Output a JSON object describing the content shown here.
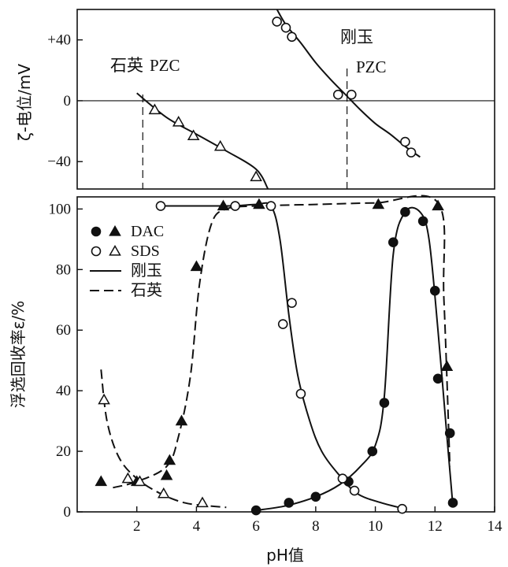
{
  "chart_data": [
    {
      "type": "scatter",
      "ylabel": "ζ-电位/mV",
      "ylim": [
        -58,
        60
      ],
      "xlim": [
        0,
        14
      ],
      "yticks": [
        -40,
        0,
        40
      ],
      "ytick_labels": [
        "−40",
        "0",
        "+40"
      ],
      "annotations": [
        {
          "id": "quartz-pzc",
          "text_cn": "石英",
          "text_en": "PZC",
          "x": 2.2
        },
        {
          "id": "corundum-pzc",
          "text_cn": "刚玉",
          "text_en": "PZC",
          "x": 9.05
        }
      ],
      "series": [
        {
          "marker": "open-triangle",
          "points": [
            [
              2.6,
              -6
            ],
            [
              3.4,
              -14
            ],
            [
              3.9,
              -23
            ],
            [
              4.8,
              -30
            ],
            [
              6.0,
              -50
            ]
          ]
        },
        {
          "marker": "open-circle",
          "points": [
            [
              6.7,
              52
            ],
            [
              7.0,
              48
            ],
            [
              7.2,
              42
            ],
            [
              8.75,
              4
            ],
            [
              9.2,
              4
            ],
            [
              11.0,
              -27
            ],
            [
              11.2,
              -34
            ]
          ]
        }
      ],
      "curves": [
        {
          "style": "solid",
          "points": [
            [
              2.0,
              5
            ],
            [
              3.0,
              -11
            ],
            [
              4.0,
              -22
            ],
            [
              5.0,
              -33
            ],
            [
              6.0,
              -45
            ],
            [
              6.4,
              -58
            ]
          ]
        },
        {
          "style": "solid",
          "points": [
            [
              6.7,
              60
            ],
            [
              7.0,
              50
            ],
            [
              7.5,
              38
            ],
            [
              8.0,
              25
            ],
            [
              8.5,
              14
            ],
            [
              9.0,
              4
            ],
            [
              9.5,
              -6
            ],
            [
              10.0,
              -15
            ],
            [
              10.5,
              -22
            ],
            [
              11.0,
              -30
            ],
            [
              11.5,
              -37
            ]
          ]
        }
      ]
    },
    {
      "type": "scatter",
      "xlabel": "pH值",
      "ylabel": "浮选回收率ε/%",
      "xlim": [
        0,
        14
      ],
      "ylim": [
        0,
        104
      ],
      "xticks": [
        2,
        4,
        6,
        8,
        10,
        12,
        14
      ],
      "yticks": [
        0,
        20,
        40,
        60,
        80,
        100
      ],
      "legend": {
        "placement": "upper-left",
        "entries": [
          {
            "label": "DAC",
            "markers": [
              "filled-circle",
              "filled-triangle"
            ]
          },
          {
            "label": "SDS",
            "markers": [
              "open-circle",
              "open-triangle"
            ]
          },
          {
            "label": "刚玉",
            "line": "solid"
          },
          {
            "label": "石英",
            "line": "dashed"
          }
        ]
      },
      "series": [
        {
          "marker": "filled-circle",
          "points": [
            [
              6.0,
              0.5
            ],
            [
              7.1,
              3
            ],
            [
              8.0,
              5
            ],
            [
              9.1,
              10
            ],
            [
              9.9,
              20
            ],
            [
              10.3,
              36
            ],
            [
              10.6,
              89
            ],
            [
              11.0,
              99
            ],
            [
              11.6,
              96
            ],
            [
              12.0,
              73
            ],
            [
              12.1,
              44
            ],
            [
              12.5,
              26
            ],
            [
              12.6,
              3
            ]
          ]
        },
        {
          "marker": "filled-triangle",
          "points": [
            [
              0.8,
              10
            ],
            [
              2.0,
              10
            ],
            [
              3.0,
              12
            ],
            [
              3.1,
              17
            ],
            [
              3.5,
              30
            ],
            [
              4.0,
              81
            ],
            [
              4.9,
              101
            ],
            [
              6.1,
              101.5
            ],
            [
              10.1,
              101.5
            ],
            [
              12.1,
              101
            ],
            [
              12.4,
              48
            ]
          ]
        },
        {
          "marker": "open-circle",
          "points": [
            [
              2.8,
              101
            ],
            [
              5.3,
              101
            ],
            [
              6.5,
              101
            ],
            [
              6.9,
              62
            ],
            [
              7.2,
              69
            ],
            [
              7.5,
              39
            ],
            [
              8.9,
              11
            ],
            [
              9.3,
              7
            ],
            [
              10.9,
              1
            ]
          ]
        },
        {
          "marker": "open-triangle",
          "points": [
            [
              0.9,
              37
            ],
            [
              1.7,
              11
            ],
            [
              2.1,
              10
            ],
            [
              2.9,
              6
            ],
            [
              4.2,
              3
            ]
          ]
        }
      ],
      "curves": [
        {
          "style": "solid",
          "points": [
            [
              6.0,
              0.5
            ],
            [
              7.0,
              2
            ],
            [
              8.0,
              5
            ],
            [
              8.8,
              9
            ],
            [
              9.5,
              15
            ],
            [
              10.0,
              22
            ],
            [
              10.3,
              38
            ],
            [
              10.6,
              85
            ],
            [
              11.0,
              99
            ],
            [
              11.5,
              99
            ],
            [
              11.8,
              90
            ],
            [
              12.1,
              60
            ],
            [
              12.4,
              25
            ],
            [
              12.6,
              2
            ]
          ]
        },
        {
          "style": "solid",
          "points": [
            [
              5.3,
              101
            ],
            [
              6.0,
              101.5
            ],
            [
              6.5,
              101
            ],
            [
              6.8,
              90
            ],
            [
              7.1,
              65
            ],
            [
              7.4,
              45
            ],
            [
              7.8,
              30
            ],
            [
              8.2,
              20
            ],
            [
              8.8,
              12
            ],
            [
              9.4,
              6
            ],
            [
              10.2,
              3
            ],
            [
              11.0,
              1
            ]
          ]
        },
        {
          "style": "dashed",
          "points": [
            [
              0.8,
              47
            ],
            [
              1.0,
              30
            ],
            [
              1.4,
              18
            ],
            [
              2.0,
              11
            ],
            [
              2.8,
              6
            ],
            [
              3.6,
              3
            ],
            [
              4.4,
              2
            ],
            [
              5.0,
              1.5
            ]
          ]
        },
        {
          "style": "dashed",
          "points": [
            [
              1.2,
              8
            ],
            [
              2.0,
              10
            ],
            [
              3.0,
              15
            ],
            [
              3.4,
              25
            ],
            [
              3.8,
              45
            ],
            [
              4.1,
              75
            ],
            [
              4.5,
              95
            ],
            [
              5.0,
              100
            ],
            [
              6.0,
              101
            ],
            [
              8.0,
              101.5
            ],
            [
              10.0,
              102
            ],
            [
              12.1,
              102
            ],
            [
              12.3,
              70
            ],
            [
              12.5,
              15
            ]
          ]
        },
        {
          "style": "solid",
          "points": [
            [
              2.8,
              101
            ],
            [
              4.0,
              101
            ],
            [
              5.3,
              101
            ]
          ]
        }
      ]
    }
  ]
}
